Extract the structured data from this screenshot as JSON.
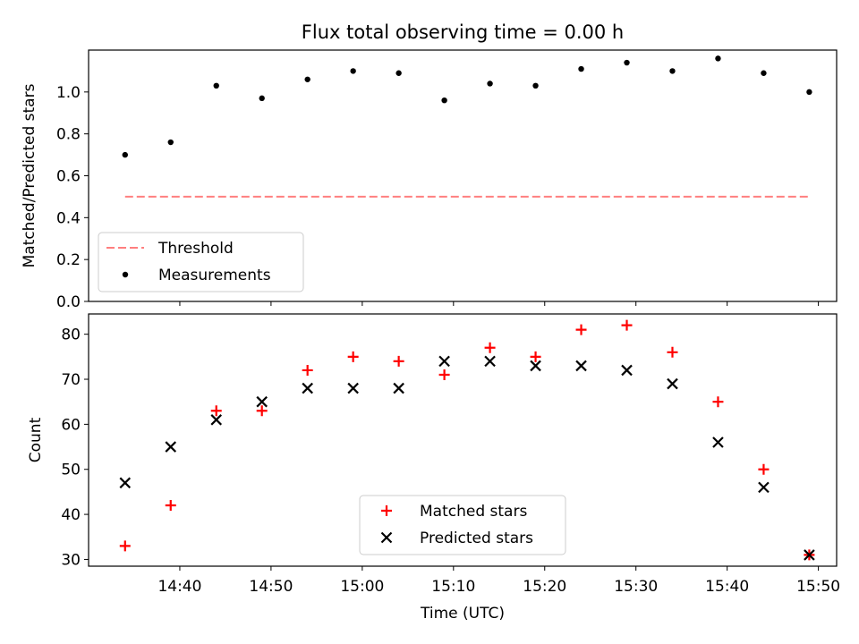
{
  "title": "Flux total observing time = 0.00 h",
  "colors": {
    "threshold": "#ff7f7f",
    "measurements": "#000000",
    "matched": "#ff0000",
    "predicted": "#000000"
  },
  "chart_data": [
    {
      "type": "scatter",
      "ylabel": "Matched/Predicted stars",
      "ylim": [
        0,
        1.2
      ],
      "yticks": [
        0.0,
        0.2,
        0.4,
        0.6,
        0.8,
        1.0
      ],
      "ytick_labels": [
        "0.0",
        "0.2",
        "0.4",
        "0.6",
        "0.8",
        "1.0"
      ],
      "xlim": [
        "14:30:00",
        "15:52:00"
      ],
      "legend": {
        "position": "lower-left",
        "entries": [
          "Threshold",
          "Measurements"
        ]
      },
      "series": [
        {
          "name": "Threshold",
          "kind": "dashed-line",
          "x": [
            "14:34:00",
            "15:49:00"
          ],
          "y": [
            0.5,
            0.5
          ]
        },
        {
          "name": "Measurements",
          "kind": "dot",
          "x": [
            "14:34:00",
            "14:39:00",
            "14:44:00",
            "14:49:00",
            "14:54:00",
            "14:59:00",
            "15:04:00",
            "15:09:00",
            "15:14:00",
            "15:19:00",
            "15:24:00",
            "15:29:00",
            "15:34:00",
            "15:39:00",
            "15:44:00",
            "15:49:00"
          ],
          "y": [
            0.7,
            0.76,
            1.03,
            0.97,
            1.06,
            1.1,
            1.09,
            0.96,
            1.04,
            1.03,
            1.11,
            1.14,
            1.1,
            1.16,
            1.09,
            1.0
          ]
        }
      ]
    },
    {
      "type": "scatter",
      "ylabel": "Count",
      "xlabel": "Time (UTC)",
      "ylim": [
        28.5,
        84.5
      ],
      "yticks": [
        30,
        40,
        50,
        60,
        70,
        80
      ],
      "ytick_labels": [
        "30",
        "40",
        "50",
        "60",
        "70",
        "80"
      ],
      "xlim": [
        "14:30:00",
        "15:52:00"
      ],
      "xticks": [
        "14:40:00",
        "14:50:00",
        "15:00:00",
        "15:10:00",
        "15:20:00",
        "15:30:00",
        "15:40:00",
        "15:50:00"
      ],
      "xtick_labels": [
        "14:40",
        "14:50",
        "15:00",
        "15:10",
        "15:20",
        "15:30",
        "15:40",
        "15:50"
      ],
      "legend": {
        "position": "lower-center",
        "entries": [
          "Matched stars",
          "Predicted stars"
        ]
      },
      "series": [
        {
          "name": "Matched stars",
          "marker": "+",
          "x": [
            "14:34:00",
            "14:39:00",
            "14:44:00",
            "14:49:00",
            "14:54:00",
            "14:59:00",
            "15:04:00",
            "15:09:00",
            "15:14:00",
            "15:19:00",
            "15:24:00",
            "15:29:00",
            "15:34:00",
            "15:39:00",
            "15:44:00",
            "15:49:00"
          ],
          "y": [
            33,
            42,
            63,
            63,
            72,
            75,
            74,
            71,
            77,
            75,
            81,
            82,
            76,
            65,
            50,
            31
          ]
        },
        {
          "name": "Predicted stars",
          "marker": "x",
          "x": [
            "14:34:00",
            "14:39:00",
            "14:44:00",
            "14:49:00",
            "14:54:00",
            "14:59:00",
            "15:04:00",
            "15:09:00",
            "15:14:00",
            "15:19:00",
            "15:24:00",
            "15:29:00",
            "15:34:00",
            "15:39:00",
            "15:44:00",
            "15:49:00"
          ],
          "y": [
            47,
            55,
            61,
            65,
            68,
            68,
            68,
            74,
            74,
            73,
            73,
            72,
            69,
            56,
            46,
            31
          ]
        }
      ]
    }
  ]
}
